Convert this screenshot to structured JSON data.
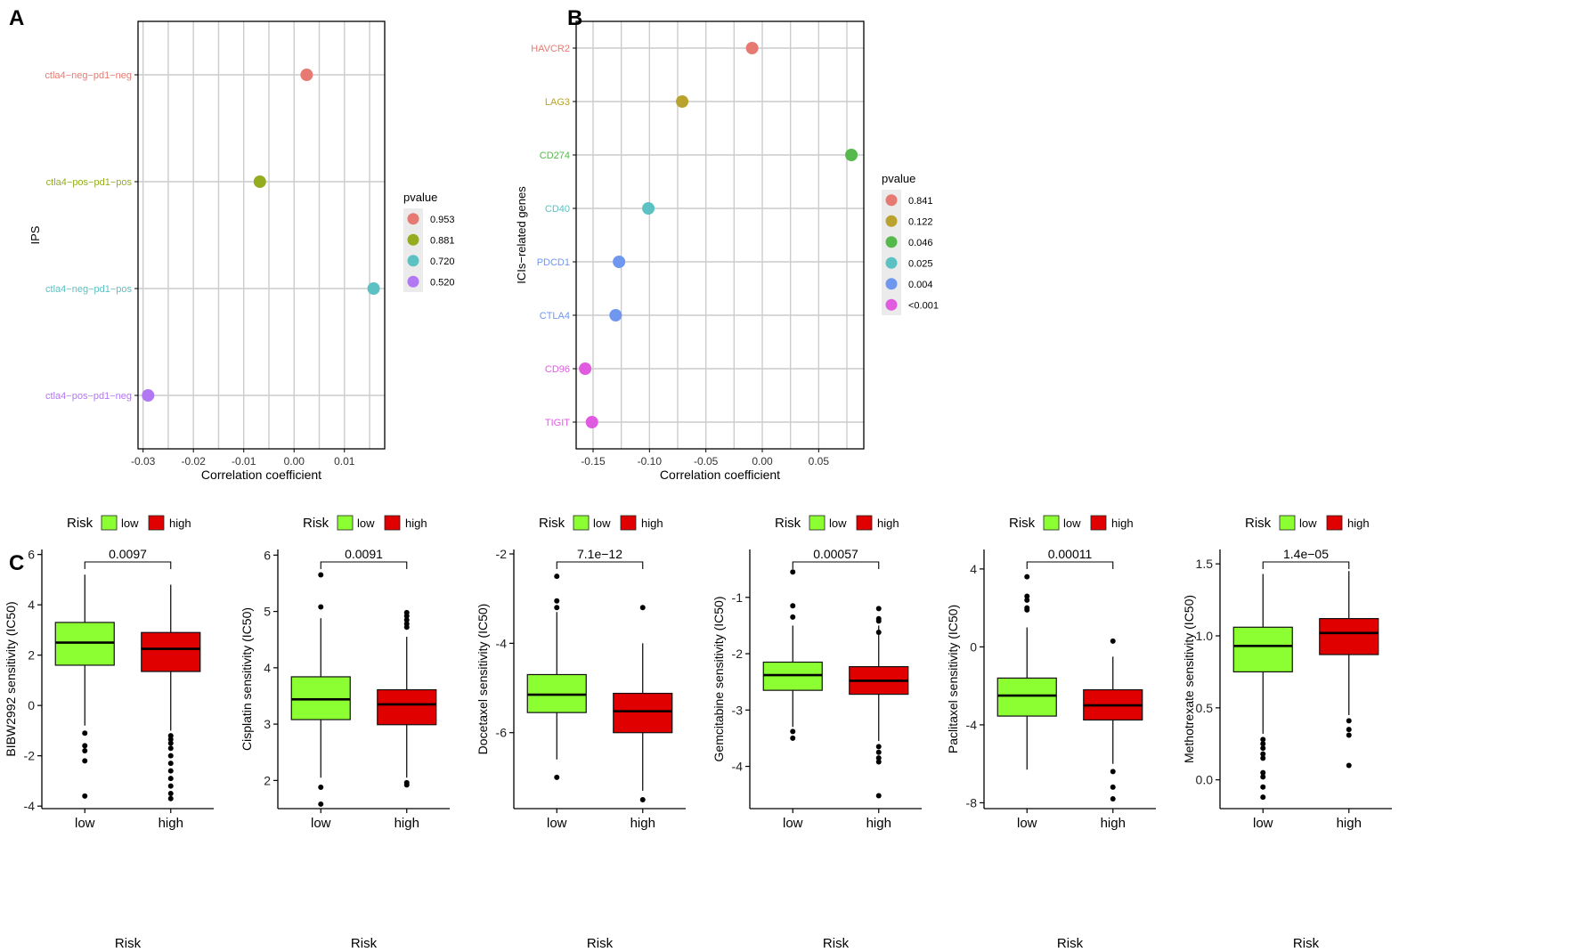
{
  "colors": {
    "grid": "#cccccc",
    "axis": "#000000",
    "low": "#8cff33",
    "high": "#e00000",
    "p1": "#e67a72",
    "p2": "#b9a22d",
    "p3": "#55b94b",
    "p4": "#5cc1c2",
    "p5": "#6f97f0",
    "p6": "#e05be0",
    "ipsA": "#e67a72",
    "ipsB": "#93ad1f",
    "ipsC": "#5cc1c2",
    "ipsD": "#b277f2",
    "legendBg": "#ebebeb"
  },
  "chart_data": [
    {
      "panel": "A",
      "type": "scatter",
      "xlabel": "Correlation coefficient",
      "ylabel": "IPS",
      "xlim": [
        -0.031,
        0.018
      ],
      "xticks": [
        -0.03,
        -0.02,
        -0.01,
        0.0,
        0.01
      ],
      "xtick_labels": [
        "-0.03",
        "-0.02",
        "-0.01",
        "0.00",
        "0.01"
      ],
      "categories": [
        "ctla4−neg−pd1−neg",
        "ctla4−pos−pd1−pos",
        "ctla4−neg−pd1−pos",
        "ctla4−pos−pd1−neg"
      ],
      "values": [
        0.0025,
        -0.0068,
        0.0158,
        -0.029
      ],
      "point_pvalues": [
        "0.953",
        "0.881",
        "0.720",
        "0.520"
      ],
      "point_colors": [
        "#e67a72",
        "#93ad1f",
        "#5cc1c2",
        "#b277f2"
      ],
      "legend_title": "pvalue",
      "legend_labels": [
        "0.953",
        "0.881",
        "0.720",
        "0.520"
      ],
      "legend_colors": [
        "#e67a72",
        "#93ad1f",
        "#5cc1c2",
        "#b277f2"
      ]
    },
    {
      "panel": "B",
      "type": "scatter",
      "xlabel": "Correlation coefficient",
      "ylabel": "ICIs−related genes",
      "xlim": [
        -0.165,
        0.09
      ],
      "xticks": [
        -0.15,
        -0.1,
        -0.05,
        0.0,
        0.05
      ],
      "xtick_labels": [
        "-0.15",
        "-0.10",
        "-0.05",
        "0.00",
        "0.05"
      ],
      "categories": [
        "HAVCR2",
        "LAG3",
        "CD274",
        "CD40",
        "PDCD1",
        "CTLA4",
        "CD96",
        "TIGIT"
      ],
      "values": [
        -0.009,
        -0.071,
        0.079,
        -0.101,
        -0.127,
        -0.13,
        -0.157,
        -0.151
      ],
      "point_pvalues": [
        "0.841",
        "0.122",
        "0.046",
        "0.025",
        "0.004",
        "0.004",
        "<0.001",
        "<0.001"
      ],
      "point_colors": [
        "#e67a72",
        "#b9a22d",
        "#55b94b",
        "#5cc1c2",
        "#6f97f0",
        "#6f97f0",
        "#e05be0",
        "#e05be0"
      ],
      "legend_title": "pvalue",
      "legend_labels": [
        "0.841",
        "0.122",
        "0.046",
        "0.025",
        "0.004",
        "<0.001"
      ],
      "legend_colors": [
        "#e67a72",
        "#b9a22d",
        "#55b94b",
        "#5cc1c2",
        "#6f97f0",
        "#e05be0"
      ]
    },
    {
      "panel": "C1",
      "type": "box",
      "legend_title": "Risk",
      "legend_labels": [
        "low",
        "high"
      ],
      "xlabel": "Risk",
      "ylabel": "BIBW2992 sensitivity (IC50)",
      "categories": [
        "low",
        "high"
      ],
      "ylim": [
        -4.1,
        6.2
      ],
      "yticks": [
        -4,
        -2,
        0,
        2,
        4,
        6
      ],
      "ytick_labels": [
        "-4",
        "-2",
        "0",
        "2",
        "4",
        "6"
      ],
      "pvalue": "0.0097",
      "boxes": [
        {
          "q1": 1.6,
          "median": 2.5,
          "q3": 3.3,
          "whisker_low": -0.8,
          "whisker_high": 5.2,
          "outliers": [
            -1.1,
            -1.6,
            -1.8,
            -2.2,
            -3.6
          ]
        },
        {
          "q1": 1.35,
          "median": 2.25,
          "q3": 2.9,
          "whisker_low": -1.0,
          "whisker_high": 4.8,
          "outliers": [
            -1.2,
            -1.35,
            -1.5,
            -1.7,
            -2.0,
            -2.3,
            -2.6,
            -2.9,
            -3.2,
            -3.5,
            -3.7
          ]
        }
      ]
    },
    {
      "panel": "C2",
      "type": "box",
      "legend_title": "Risk",
      "legend_labels": [
        "low",
        "high"
      ],
      "xlabel": "Risk",
      "ylabel": "Cisplatin sensitivity (IC50)",
      "categories": [
        "low",
        "high"
      ],
      "ylim": [
        1.5,
        6.1
      ],
      "yticks": [
        2,
        3,
        4,
        5,
        6
      ],
      "ytick_labels": [
        "2",
        "3",
        "4",
        "5",
        "6"
      ],
      "pvalue": "0.0091",
      "boxes": [
        {
          "q1": 3.08,
          "median": 3.44,
          "q3": 3.84,
          "whisker_low": 2.05,
          "whisker_high": 4.88,
          "outliers": [
            5.65,
            5.08,
            1.88,
            1.58
          ]
        },
        {
          "q1": 2.99,
          "median": 3.35,
          "q3": 3.61,
          "whisker_low": 2.05,
          "whisker_high": 4.55,
          "outliers": [
            4.98,
            4.92,
            4.85,
            4.78,
            4.72,
            1.96,
            1.92
          ]
        }
      ]
    },
    {
      "panel": "C3",
      "type": "box",
      "legend_title": "Risk",
      "legend_labels": [
        "low",
        "high"
      ],
      "xlabel": "Risk",
      "ylabel": "Docetaxel sensitivity (IC50)",
      "categories": [
        "low",
        "high"
      ],
      "ylim": [
        -7.7,
        -1.9
      ],
      "yticks": [
        -6,
        -4,
        -2
      ],
      "ytick_labels": [
        "-6",
        "-4",
        "-2"
      ],
      "pvalue": "7.1e−12",
      "boxes": [
        {
          "q1": -5.55,
          "median": -5.15,
          "q3": -4.7,
          "whisker_low": -6.6,
          "whisker_high": -3.3,
          "outliers": [
            -2.5,
            -3.05,
            -3.2,
            -7.0
          ]
        },
        {
          "q1": -6.0,
          "median": -5.52,
          "q3": -5.12,
          "whisker_low": -7.3,
          "whisker_high": -4.0,
          "outliers": [
            -3.2,
            -7.5
          ]
        }
      ]
    },
    {
      "panel": "C4",
      "type": "box",
      "legend_title": "Risk",
      "legend_labels": [
        "low",
        "high"
      ],
      "xlabel": "Risk",
      "ylabel": "Gemcitabine sensitivity (IC50)",
      "categories": [
        "low",
        "high"
      ],
      "ylim": [
        -4.75,
        -0.15
      ],
      "yticks": [
        -4,
        -3,
        -2,
        -1
      ],
      "ytick_labels": [
        "-4",
        "-3",
        "-2",
        "-1"
      ],
      "pvalue": "0.00057",
      "boxes": [
        {
          "q1": -2.65,
          "median": -2.38,
          "q3": -2.15,
          "whisker_low": -3.3,
          "whisker_high": -1.5,
          "outliers": [
            -0.55,
            -1.15,
            -1.35,
            -3.38,
            -3.5
          ]
        },
        {
          "q1": -2.72,
          "median": -2.48,
          "q3": -2.23,
          "whisker_low": -3.55,
          "whisker_high": -1.5,
          "outliers": [
            -1.2,
            -1.38,
            -1.42,
            -1.62,
            -3.65,
            -3.75,
            -3.85,
            -3.92,
            -4.52
          ]
        }
      ]
    },
    {
      "panel": "C5",
      "type": "box",
      "legend_title": "Risk",
      "legend_labels": [
        "low",
        "high"
      ],
      "xlabel": "Risk",
      "ylabel": "Paclitaxel sensitivity (IC50)",
      "categories": [
        "low",
        "high"
      ],
      "ylim": [
        -8.3,
        5.0
      ],
      "yticks": [
        -8,
        -4,
        0,
        4
      ],
      "ytick_labels": [
        "-8",
        "-4",
        "0",
        "4"
      ],
      "pvalue": "0.00011",
      "boxes": [
        {
          "q1": -3.55,
          "median": -2.5,
          "q3": -1.6,
          "whisker_low": -6.3,
          "whisker_high": 1.0,
          "outliers": [
            3.6,
            2.6,
            2.4,
            2.0,
            1.9
          ]
        },
        {
          "q1": -3.75,
          "median": -3.0,
          "q3": -2.2,
          "whisker_low": -6.0,
          "whisker_high": -0.5,
          "outliers": [
            0.3,
            -6.4,
            -7.2,
            -7.8
          ]
        }
      ]
    },
    {
      "panel": "C6",
      "type": "box",
      "legend_title": "Risk",
      "legend_labels": [
        "low",
        "high"
      ],
      "xlabel": "Risk",
      "ylabel": "Methotrexate sensitivity (IC50)",
      "categories": [
        "low",
        "high"
      ],
      "ylim": [
        -0.2,
        1.6
      ],
      "yticks": [
        0.0,
        0.5,
        1.0,
        1.5
      ],
      "ytick_labels": [
        "0.0",
        "0.5",
        "1.0",
        "1.5"
      ],
      "pvalue": "1.4e−05",
      "boxes": [
        {
          "q1": 0.75,
          "median": 0.93,
          "q3": 1.06,
          "whisker_low": 0.32,
          "whisker_high": 1.43,
          "outliers": [
            0.28,
            0.25,
            0.22,
            0.18,
            0.15,
            0.05,
            0.02,
            -0.05,
            -0.12
          ]
        },
        {
          "q1": 0.87,
          "median": 1.02,
          "q3": 1.12,
          "whisker_low": 0.45,
          "whisker_high": 1.45,
          "outliers": [
            0.41,
            0.35,
            0.31,
            0.1
          ]
        }
      ]
    }
  ],
  "panel_labels": {
    "a": "A",
    "b": "B",
    "c": "C"
  }
}
